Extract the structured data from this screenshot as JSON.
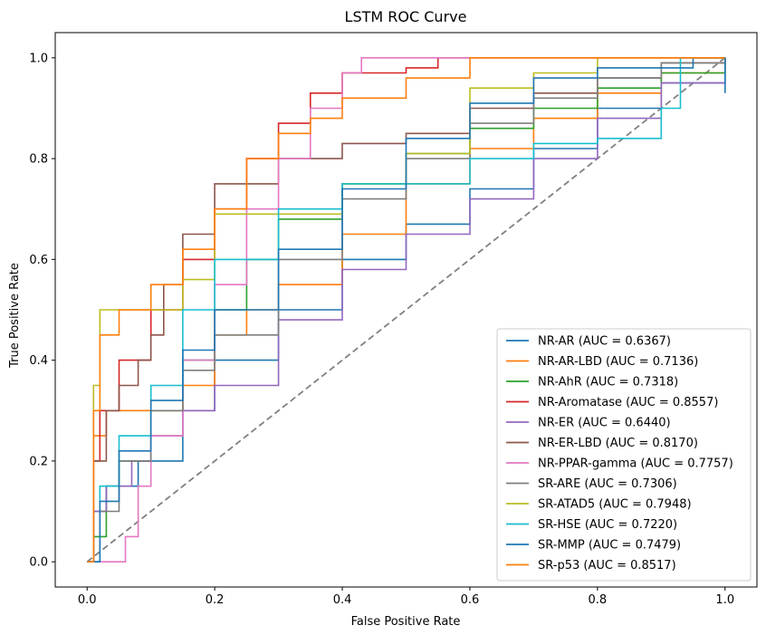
{
  "chart_data": {
    "type": "line",
    "title": "LSTM ROC Curve",
    "xlabel": "False Positive Rate",
    "ylabel": "True Positive Rate",
    "xlim": [
      -0.05,
      1.05
    ],
    "ylim": [
      -0.05,
      1.05
    ],
    "x_ticks": [
      "0.0",
      "0.2",
      "0.4",
      "0.6",
      "0.8",
      "1.0"
    ],
    "y_ticks": [
      "0.0",
      "0.2",
      "0.4",
      "0.6",
      "0.8",
      "1.0"
    ],
    "grid": false,
    "legend_position": "lower-right",
    "diagonal": {
      "x": [
        0,
        1
      ],
      "y": [
        0,
        1
      ],
      "color": "#808080",
      "style": "dashed"
    },
    "series": [
      {
        "name": "NR-AR (AUC = 0.6367)",
        "color": "#1f77b4",
        "x": [
          0,
          0.01,
          0.03,
          0.08,
          0.15,
          0.2,
          0.3,
          0.4,
          0.5,
          0.6,
          0.7,
          0.8,
          0.9,
          1.0
        ],
        "y": [
          0,
          0.1,
          0.15,
          0.2,
          0.3,
          0.4,
          0.5,
          0.6,
          0.67,
          0.74,
          0.82,
          0.9,
          0.95,
          1.0
        ]
      },
      {
        "name": "NR-AR-LBD (AUC = 0.7136)",
        "color": "#ff7f0e",
        "x": [
          0,
          0.01,
          0.03,
          0.08,
          0.15,
          0.2,
          0.25,
          0.3,
          0.4,
          0.5,
          0.6,
          0.7,
          0.8,
          0.9,
          1.0
        ],
        "y": [
          0,
          0.25,
          0.3,
          0.3,
          0.35,
          0.45,
          0.5,
          0.55,
          0.65,
          0.75,
          0.82,
          0.88,
          0.93,
          0.97,
          1.0
        ]
      },
      {
        "name": "NR-AhR (AUC = 0.7318)",
        "color": "#2ca02c",
        "x": [
          0,
          0.01,
          0.03,
          0.05,
          0.1,
          0.15,
          0.2,
          0.25,
          0.3,
          0.4,
          0.5,
          0.6,
          0.7,
          0.8,
          0.9,
          1.0
        ],
        "y": [
          0,
          0.05,
          0.15,
          0.2,
          0.3,
          0.4,
          0.5,
          0.6,
          0.68,
          0.75,
          0.81,
          0.86,
          0.9,
          0.94,
          0.97,
          1.0
        ]
      },
      {
        "name": "NR-Aromatase (AUC = 0.8557)",
        "color": "#d62728",
        "x": [
          0,
          0.01,
          0.02,
          0.05,
          0.1,
          0.15,
          0.2,
          0.25,
          0.3,
          0.35,
          0.4,
          0.5,
          0.55,
          0.6,
          0.8,
          1.0
        ],
        "y": [
          0,
          0.2,
          0.3,
          0.4,
          0.5,
          0.6,
          0.7,
          0.8,
          0.87,
          0.93,
          0.97,
          0.98,
          1.0,
          1.0,
          1.0,
          1.0
        ]
      },
      {
        "name": "NR-ER (AUC = 0.6440)",
        "color": "#9467bd",
        "x": [
          0,
          0.01,
          0.03,
          0.07,
          0.1,
          0.15,
          0.2,
          0.3,
          0.4,
          0.5,
          0.6,
          0.7,
          0.8,
          0.9,
          1.0
        ],
        "y": [
          0,
          0.1,
          0.15,
          0.2,
          0.25,
          0.3,
          0.35,
          0.48,
          0.58,
          0.65,
          0.72,
          0.8,
          0.88,
          0.95,
          1.0
        ]
      },
      {
        "name": "NR-ER-LBD (AUC = 0.8170)",
        "color": "#8c564b",
        "x": [
          0,
          0.01,
          0.03,
          0.05,
          0.08,
          0.1,
          0.12,
          0.15,
          0.2,
          0.3,
          0.4,
          0.5,
          0.6,
          0.7,
          0.8,
          0.9,
          1.0
        ],
        "y": [
          0,
          0.2,
          0.3,
          0.35,
          0.4,
          0.45,
          0.55,
          0.65,
          0.75,
          0.8,
          0.83,
          0.85,
          0.9,
          0.93,
          0.96,
          0.99,
          1.0
        ]
      },
      {
        "name": "NR-PPAR-gamma (AUC = 0.7757)",
        "color": "#e377c2",
        "x": [
          0,
          0.03,
          0.06,
          0.08,
          0.1,
          0.15,
          0.2,
          0.25,
          0.3,
          0.35,
          0.4,
          0.43,
          0.6,
          1.0
        ],
        "y": [
          0,
          0.0,
          0.05,
          0.15,
          0.25,
          0.4,
          0.55,
          0.7,
          0.8,
          0.9,
          0.97,
          1.0,
          1.0,
          1.0
        ]
      },
      {
        "name": "SR-ARE (AUC = 0.7306)",
        "color": "#7f7f7f",
        "x": [
          0,
          0.02,
          0.05,
          0.1,
          0.15,
          0.2,
          0.3,
          0.4,
          0.5,
          0.6,
          0.7,
          0.8,
          0.9,
          1.0
        ],
        "y": [
          0,
          0.1,
          0.2,
          0.3,
          0.38,
          0.45,
          0.6,
          0.72,
          0.8,
          0.87,
          0.92,
          0.96,
          0.99,
          1.0
        ]
      },
      {
        "name": "SR-ATAD5 (AUC = 0.7948)",
        "color": "#bcbd22",
        "x": [
          0,
          0.01,
          0.02,
          0.1,
          0.15,
          0.2,
          0.3,
          0.4,
          0.5,
          0.6,
          0.7,
          0.8,
          1.0
        ],
        "y": [
          0,
          0.35,
          0.5,
          0.5,
          0.56,
          0.69,
          0.69,
          0.75,
          0.81,
          0.94,
          0.97,
          1.0,
          1.0
        ]
      },
      {
        "name": "SR-HSE (AUC = 0.7220)",
        "color": "#17becf",
        "x": [
          0,
          0.02,
          0.05,
          0.1,
          0.15,
          0.2,
          0.3,
          0.4,
          0.5,
          0.6,
          0.7,
          0.8,
          0.87,
          0.9,
          0.93,
          1.0
        ],
        "y": [
          0,
          0.15,
          0.25,
          0.35,
          0.5,
          0.6,
          0.7,
          0.75,
          0.75,
          0.8,
          0.83,
          0.84,
          0.84,
          0.9,
          1.0,
          1.0
        ]
      },
      {
        "name": "SR-MMP (AUC = 0.7479)",
        "color": "#1f77b4",
        "x": [
          0,
          0.02,
          0.05,
          0.1,
          0.15,
          0.2,
          0.3,
          0.4,
          0.5,
          0.6,
          0.7,
          0.8,
          0.95,
          1.0
        ],
        "y": [
          0,
          0.12,
          0.22,
          0.32,
          0.42,
          0.5,
          0.62,
          0.74,
          0.84,
          0.91,
          0.96,
          0.98,
          1.0,
          0.93
        ]
      },
      {
        "name": "SR-p53 (AUC = 0.8517)",
        "color": "#ff7f0e",
        "x": [
          0,
          0.01,
          0.02,
          0.05,
          0.1,
          0.15,
          0.2,
          0.25,
          0.3,
          0.35,
          0.4,
          0.5,
          0.6,
          0.7,
          1.0
        ],
        "y": [
          0,
          0.3,
          0.45,
          0.5,
          0.55,
          0.62,
          0.7,
          0.8,
          0.85,
          0.88,
          0.92,
          0.96,
          1.0,
          1.0,
          1.0
        ]
      }
    ]
  }
}
